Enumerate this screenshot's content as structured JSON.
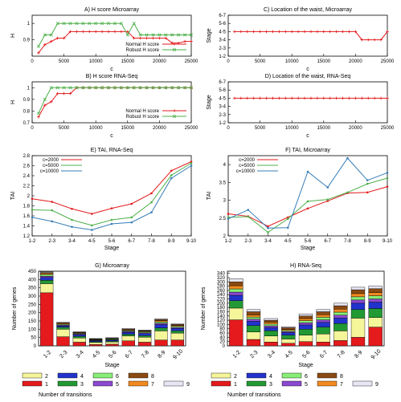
{
  "chart_data": [
    {
      "id": "A",
      "type": "line",
      "title": "A) H score Microarray",
      "xlabel": "c",
      "ylabel": "H",
      "xlim": [
        0,
        25000
      ],
      "ylim": [
        0.8,
        1.05
      ],
      "xticks": [
        0,
        5000,
        10000,
        15000,
        20000,
        25000
      ],
      "yticks": [
        {
          "v": 0.9,
          "label": "0.9"
        },
        {
          "v": 1,
          "label": "1"
        }
      ],
      "legend": "bottom-right",
      "grid": false,
      "series": [
        {
          "name": "Normal H score",
          "color": "#e41a1c",
          "marker": "+",
          "x": [
            1000,
            2000,
            3000,
            4000,
            5000,
            6000,
            7000,
            8000,
            9000,
            10000,
            11000,
            12000,
            13000,
            14000,
            15000,
            16000,
            17000,
            18000,
            19000,
            20000,
            21000,
            22000,
            23000,
            24000,
            25000
          ],
          "y": [
            0.82,
            0.87,
            0.89,
            0.91,
            0.91,
            0.95,
            0.95,
            0.95,
            0.95,
            0.95,
            0.95,
            0.95,
            0.95,
            0.95,
            0.95,
            0.91,
            0.91,
            0.91,
            0.91,
            0.91,
            0.91,
            0.88,
            0.88,
            0.89,
            0.89
          ]
        },
        {
          "name": "Robust H score",
          "color": "#4daf4a",
          "marker": "x",
          "x": [
            1000,
            2000,
            3000,
            4000,
            5000,
            6000,
            7000,
            8000,
            9000,
            10000,
            11000,
            12000,
            13000,
            14000,
            15000,
            16000,
            17000,
            18000,
            19000,
            20000,
            21000,
            22000,
            23000,
            24000,
            25000
          ],
          "y": [
            0.86,
            0.93,
            0.93,
            1.0,
            1.0,
            1.0,
            1.0,
            1.0,
            1.0,
            1.0,
            1.0,
            1.0,
            1.0,
            1.0,
            0.93,
            1.0,
            0.93,
            0.93,
            0.93,
            0.93,
            0.93,
            0.93,
            0.93,
            0.93,
            0.93
          ]
        }
      ]
    },
    {
      "id": "B",
      "type": "line",
      "title": "B) H score RNA-Seq",
      "xlabel": "c",
      "ylabel": "H",
      "xlim": [
        0,
        25000
      ],
      "ylim": [
        0.7,
        1.05
      ],
      "xticks": [
        0,
        5000,
        10000,
        15000,
        20000,
        25000
      ],
      "yticks": [
        {
          "v": 0.7,
          "label": "0.7"
        },
        {
          "v": 0.8,
          "label": "0.8"
        },
        {
          "v": 0.9,
          "label": "0.9"
        },
        {
          "v": 1,
          "label": "1"
        }
      ],
      "legend": "bottom-right",
      "grid": false,
      "series": [
        {
          "name": "Normal H score",
          "color": "#e41a1c",
          "marker": "+",
          "x": [
            1000,
            2000,
            3000,
            4000,
            5000,
            6000,
            7000,
            8000,
            9000,
            10000,
            11000,
            12000,
            13000,
            14000,
            15000,
            16000,
            17000,
            18000,
            19000,
            20000,
            21000,
            22000,
            23000,
            24000,
            25000
          ],
          "y": [
            0.75,
            0.85,
            0.88,
            0.95,
            0.95,
            0.95,
            1,
            1,
            1,
            1,
            1,
            1,
            1,
            1,
            1,
            1,
            1,
            1,
            1,
            1,
            1,
            1,
            1,
            1,
            1
          ]
        },
        {
          "name": "Robust H score",
          "color": "#4daf4a",
          "marker": "x",
          "x": [
            1000,
            2000,
            3000,
            4000,
            5000,
            6000,
            7000,
            8000,
            9000,
            10000,
            11000,
            12000,
            13000,
            14000,
            15000,
            16000,
            17000,
            18000,
            19000,
            20000,
            21000,
            22000,
            23000,
            24000,
            25000
          ],
          "y": [
            0.78,
            0.9,
            1,
            1,
            1,
            1,
            1,
            1,
            1,
            1,
            1,
            1,
            1,
            1,
            1,
            1,
            1,
            1,
            1,
            1,
            1,
            1,
            1,
            1,
            1
          ]
        }
      ]
    },
    {
      "id": "C",
      "type": "line",
      "title": "C) Location of the waist, Microarray",
      "xlabel": "c",
      "ylabel": "Stage",
      "xlim": [
        0,
        25000
      ],
      "ylim": [
        0,
        5
      ],
      "xticks": [
        0,
        5000,
        10000,
        15000,
        20000,
        25000
      ],
      "yticks": [
        {
          "v": 0,
          "label": "1-2"
        },
        {
          "v": 1,
          "label": "2-3"
        },
        {
          "v": 2,
          "label": "3-4"
        },
        {
          "v": 3,
          "label": "4-5"
        },
        {
          "v": 4,
          "label": "5-6"
        },
        {
          "v": 5,
          "label": "6-7"
        }
      ],
      "grid": false,
      "series": [
        {
          "color": "#e41a1c",
          "marker": "+",
          "x": [
            1000,
            2000,
            3000,
            4000,
            5000,
            6000,
            7000,
            8000,
            9000,
            10000,
            11000,
            12000,
            13000,
            14000,
            15000,
            16000,
            17000,
            18000,
            19000,
            20000,
            21000,
            22000,
            23000,
            24000,
            25000
          ],
          "y": [
            3,
            3,
            3,
            3,
            3,
            3,
            3,
            3,
            3,
            3,
            3,
            3,
            3,
            3,
            3,
            3,
            3,
            3,
            3,
            3,
            2,
            2,
            2,
            2,
            3
          ]
        }
      ]
    },
    {
      "id": "D",
      "type": "line",
      "title": "D) Location of the waist, RNA-Seq",
      "xlabel": "c",
      "ylabel": "Stage",
      "xlim": [
        0,
        25000
      ],
      "ylim": [
        0,
        5
      ],
      "xticks": [
        0,
        5000,
        10000,
        15000,
        20000,
        25000
      ],
      "yticks": [
        {
          "v": 0,
          "label": "1-2"
        },
        {
          "v": 1,
          "label": "2-3"
        },
        {
          "v": 2,
          "label": "3-4"
        },
        {
          "v": 3,
          "label": "4-5"
        },
        {
          "v": 4,
          "label": "5-6"
        },
        {
          "v": 5,
          "label": "6-7"
        }
      ],
      "grid": false,
      "series": [
        {
          "color": "#e41a1c",
          "marker": "+",
          "x": [
            1000,
            2000,
            3000,
            4000,
            5000,
            6000,
            7000,
            8000,
            9000,
            10000,
            11000,
            12000,
            13000,
            14000,
            15000,
            16000,
            17000,
            18000,
            19000,
            20000,
            21000,
            22000,
            23000,
            24000,
            25000
          ],
          "y": [
            3,
            3,
            3,
            3,
            3,
            3,
            3,
            3,
            3,
            3,
            3,
            3,
            3,
            3,
            3,
            3,
            3,
            3,
            3,
            3,
            3,
            3,
            3,
            3,
            3
          ]
        }
      ]
    },
    {
      "id": "E",
      "type": "line",
      "title": "E) TAI, RNA-Seq",
      "xlabel": "Stage",
      "ylabel": "TAI",
      "categories": [
        "1-2",
        "2-3",
        "3-4",
        "4-5",
        "5-6",
        "6-7",
        "7-8",
        "8-9",
        "9-10"
      ],
      "ylim": [
        1.2,
        2.8
      ],
      "yticks": [
        {
          "v": 1.2,
          "label": "1.2"
        },
        {
          "v": 1.4,
          "label": "1.4"
        },
        {
          "v": 1.6,
          "label": "1.6"
        },
        {
          "v": 1.8,
          "label": "1.8"
        },
        {
          "v": 2.0,
          "label": "2"
        },
        {
          "v": 2.2,
          "label": "2.2"
        },
        {
          "v": 2.4,
          "label": "2.4"
        },
        {
          "v": 2.6,
          "label": "2.6"
        },
        {
          "v": 2.8,
          "label": "2.8"
        }
      ],
      "legend": "top-left",
      "grid": false,
      "series": [
        {
          "name": "c=2000",
          "color": "#e41a1c",
          "values": [
            1.94,
            1.88,
            1.74,
            1.64,
            1.75,
            1.84,
            2.05,
            2.5,
            2.68
          ]
        },
        {
          "name": "c=5000",
          "color": "#4daf4a",
          "values": [
            1.72,
            1.71,
            1.52,
            1.41,
            1.52,
            1.57,
            1.87,
            2.41,
            2.65
          ]
        },
        {
          "name": "c=10000",
          "color": "#377eb8",
          "values": [
            1.57,
            1.49,
            1.38,
            1.32,
            1.44,
            1.47,
            1.67,
            2.35,
            2.6
          ]
        }
      ]
    },
    {
      "id": "F",
      "type": "line",
      "title": "F) TAI, Microarray",
      "xlabel": "Stage",
      "ylabel": "TAI",
      "categories": [
        "1-2",
        "2-3",
        "3-4",
        "4-5",
        "5-6",
        "6-7",
        "7-8",
        "8-9",
        "9-10"
      ],
      "ylim": [
        2,
        4.25
      ],
      "yticks": [
        {
          "v": 2,
          "label": "2"
        },
        {
          "v": 2.5,
          "label": "2.5"
        },
        {
          "v": 3,
          "label": "3"
        },
        {
          "v": 3.5,
          "label": "3.5"
        },
        {
          "v": 4,
          "label": "4"
        }
      ],
      "legend": "top-left",
      "grid": false,
      "series": [
        {
          "name": "c=2000",
          "color": "#e41a1c",
          "values": [
            2.62,
            2.55,
            2.27,
            2.52,
            2.77,
            2.98,
            3.2,
            3.22,
            3.38
          ]
        },
        {
          "name": "c=5000",
          "color": "#4daf4a",
          "values": [
            2.52,
            2.54,
            2.1,
            2.48,
            2.97,
            3.02,
            3.22,
            3.46,
            3.62
          ]
        },
        {
          "name": "c=10000",
          "color": "#377eb8",
          "values": [
            2.48,
            2.73,
            2.22,
            2.23,
            3.8,
            3.36,
            4.18,
            3.56,
            3.77
          ]
        }
      ]
    },
    {
      "id": "G",
      "type": "bar",
      "stacked": true,
      "title": "G) Microarray",
      "xlabel": "Stage",
      "ylabel": "Number of genes",
      "categories": [
        "1-2",
        "2-3",
        "3-4",
        "4-5",
        "5-6",
        "6-7",
        "7-8",
        "8-9",
        "9-10"
      ],
      "ylim": [
        0,
        450
      ],
      "yticks": [
        0,
        50,
        100,
        150,
        200,
        250,
        300,
        350,
        400,
        450
      ],
      "series": [
        {
          "name": "1",
          "color": "#e41a1c",
          "values": [
            320,
            55,
            22,
            8,
            10,
            30,
            22,
            35,
            35
          ]
        },
        {
          "name": "2",
          "color": "#f5f59a",
          "values": [
            55,
            45,
            25,
            12,
            14,
            30,
            30,
            55,
            42
          ]
        },
        {
          "name": "3",
          "color": "#229933",
          "values": [
            20,
            12,
            10,
            5,
            5,
            10,
            10,
            18,
            14
          ]
        },
        {
          "name": "4",
          "color": "#2233cc",
          "values": [
            17,
            8,
            10,
            6,
            6,
            12,
            12,
            20,
            14
          ]
        },
        {
          "name": "5",
          "color": "#8b48d0",
          "values": [
            8,
            5,
            4,
            3,
            3,
            5,
            5,
            8,
            6
          ]
        },
        {
          "name": "6",
          "color": "#88ee77",
          "values": [
            10,
            5,
            4,
            3,
            4,
            5,
            6,
            9,
            7
          ]
        },
        {
          "name": "7",
          "color": "#f28a1f",
          "values": [
            6,
            4,
            3,
            2,
            2,
            4,
            3,
            6,
            5
          ]
        },
        {
          "name": "8",
          "color": "#8a4a12",
          "values": [
            6,
            5,
            4,
            3,
            3,
            5,
            4,
            8,
            6
          ]
        },
        {
          "name": "9",
          "color": "#e6e6f5",
          "values": [
            5,
            4,
            3,
            2,
            2,
            4,
            3,
            5,
            4
          ]
        }
      ]
    },
    {
      "id": "H",
      "type": "bar",
      "stacked": true,
      "title": "H) RNA-Seq",
      "xlabel": "Stage",
      "ylabel": "Number of genes",
      "categories": [
        "1-2",
        "2-3",
        "3-4",
        "4-5",
        "5-6",
        "6-7",
        "7-8",
        "8-9",
        "9-10"
      ],
      "ylim": [
        0,
        350
      ],
      "yticks": [
        0,
        20,
        40,
        60,
        80,
        100,
        120,
        140,
        160,
        180,
        200,
        220,
        240,
        260,
        280,
        300,
        320,
        340
      ],
      "series": [
        {
          "name": "1",
          "color": "#e41a1c",
          "values": [
            122,
            30,
            18,
            12,
            20,
            18,
            25,
            40,
            88
          ]
        },
        {
          "name": "2",
          "color": "#f5f59a",
          "values": [
            55,
            35,
            28,
            20,
            30,
            38,
            45,
            90,
            45
          ]
        },
        {
          "name": "3",
          "color": "#229933",
          "values": [
            35,
            30,
            25,
            18,
            28,
            32,
            35,
            40,
            42
          ]
        },
        {
          "name": "4",
          "color": "#2233cc",
          "values": [
            25,
            20,
            15,
            12,
            20,
            22,
            25,
            30,
            30
          ]
        },
        {
          "name": "5",
          "color": "#8b48d0",
          "values": [
            15,
            10,
            8,
            5,
            10,
            12,
            14,
            15,
            15
          ]
        },
        {
          "name": "6",
          "color": "#88ee77",
          "values": [
            15,
            10,
            8,
            5,
            10,
            12,
            14,
            15,
            15
          ]
        },
        {
          "name": "7",
          "color": "#f28a1f",
          "values": [
            15,
            10,
            8,
            5,
            10,
            12,
            14,
            15,
            15
          ]
        },
        {
          "name": "8",
          "color": "#8a4a12",
          "values": [
            18,
            15,
            10,
            8,
            12,
            14,
            16,
            18,
            18
          ]
        },
        {
          "name": "9",
          "color": "#e6e6f5",
          "values": [
            15,
            10,
            8,
            5,
            10,
            10,
            12,
            12,
            12
          ]
        }
      ],
      "shared_legend_title": "Number of transitions"
    }
  ]
}
